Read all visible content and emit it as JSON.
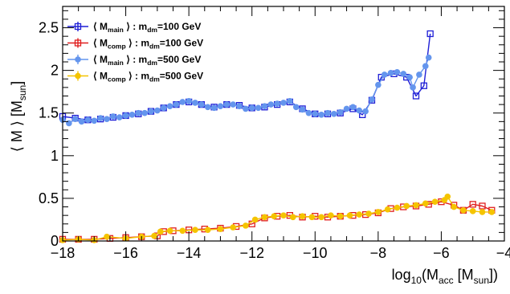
{
  "chart_data": {
    "type": "scatter",
    "title": "",
    "xlabel": {
      "base": "log",
      "sub1": "10",
      "open": "(M",
      "sub2": "acc",
      "mid": " [M",
      "sub3": "sun",
      "close": "])"
    },
    "ylabel": {
      "main": "⟨ M ⟩ [M",
      "sub": "sun",
      "close": "]"
    },
    "xlim": [
      -18,
      -4
    ],
    "ylim": [
      0,
      2.75
    ],
    "x_ticks": [
      -18,
      -16,
      -14,
      -12,
      -10,
      -8,
      -6,
      -4
    ],
    "x_tick_labels": [
      "−18",
      "−16",
      "−14",
      "−12",
      "−10",
      "−8",
      "−6",
      "−4"
    ],
    "y_ticks": [
      0,
      0.5,
      1,
      1.5,
      2,
      2.5
    ],
    "y_tick_labels": [
      "0",
      "0.5",
      "1",
      "1.5",
      "2",
      "2.5"
    ],
    "legend_position": "top-left",
    "series": [
      {
        "legend": {
          "pre": "⟨ M",
          "sub1": "main",
          "mid": " ⟩ : m",
          "sub2": "dm",
          "post": "=100 GeV"
        },
        "color": "#1f1fd6",
        "marker": "open-square",
        "points": [
          [
            -18,
            1.46
          ],
          [
            -17.6,
            1.44
          ],
          [
            -17.2,
            1.42
          ],
          [
            -16.8,
            1.43
          ],
          [
            -16.4,
            1.45
          ],
          [
            -16,
            1.47
          ],
          [
            -15.6,
            1.49
          ],
          [
            -15.2,
            1.52
          ],
          [
            -14.8,
            1.56
          ],
          [
            -14.4,
            1.6
          ],
          [
            -14,
            1.63
          ],
          [
            -13.6,
            1.6
          ],
          [
            -13.2,
            1.57
          ],
          [
            -12.8,
            1.6
          ],
          [
            -12.4,
            1.59
          ],
          [
            -12,
            1.56
          ],
          [
            -11.6,
            1.57
          ],
          [
            -11.2,
            1.6
          ],
          [
            -10.8,
            1.63
          ],
          [
            -10.4,
            1.55
          ],
          [
            -10,
            1.49
          ],
          [
            -9.6,
            1.49
          ],
          [
            -9.2,
            1.5
          ],
          [
            -8.8,
            1.55
          ],
          [
            -8.5,
            1.48
          ],
          [
            -8.2,
            1.65
          ],
          [
            -7.9,
            1.92
          ],
          [
            -7.5,
            1.96
          ],
          [
            -7.1,
            1.92
          ],
          [
            -6.8,
            1.7
          ],
          [
            -6.55,
            1.82
          ],
          [
            -6.35,
            2.43
          ]
        ]
      },
      {
        "legend": {
          "pre": "⟨ M",
          "sub1": "comp",
          "mid": " ⟩ : m",
          "sub2": "dm",
          "post": "=100 GeV"
        },
        "color": "#e01f1f",
        "marker": "open-square",
        "points": [
          [
            -18,
            0.02
          ],
          [
            -17.5,
            0.02
          ],
          [
            -17,
            0.02
          ],
          [
            -16.5,
            0.03
          ],
          [
            -16,
            0.04
          ],
          [
            -15.5,
            0.05
          ],
          [
            -15,
            0.06
          ],
          [
            -14.8,
            0.11
          ],
          [
            -14.5,
            0.12
          ],
          [
            -14,
            0.13
          ],
          [
            -13.5,
            0.14
          ],
          [
            -13,
            0.15
          ],
          [
            -12.5,
            0.17
          ],
          [
            -12,
            0.2
          ],
          [
            -11.6,
            0.27
          ],
          [
            -11.2,
            0.29
          ],
          [
            -10.8,
            0.3
          ],
          [
            -10.4,
            0.28
          ],
          [
            -10,
            0.29
          ],
          [
            -9.6,
            0.28
          ],
          [
            -9.2,
            0.29
          ],
          [
            -8.8,
            0.3
          ],
          [
            -8.4,
            0.31
          ],
          [
            -8,
            0.33
          ],
          [
            -7.6,
            0.38
          ],
          [
            -7.2,
            0.4
          ],
          [
            -6.8,
            0.41
          ],
          [
            -6.4,
            0.43
          ],
          [
            -6,
            0.46
          ],
          [
            -5.6,
            0.42
          ],
          [
            -5.3,
            0.36
          ],
          [
            -5.0,
            0.43
          ],
          [
            -4.7,
            0.41
          ],
          [
            -4.4,
            0.36
          ]
        ]
      },
      {
        "legend": {
          "pre": "⟨ M",
          "sub1": "main",
          "mid": " ⟩ : m",
          "sub2": "dm",
          "post": "=500 GeV"
        },
        "color": "#6495ed",
        "marker": "filled-circle",
        "points": [
          [
            -18,
            1.42
          ],
          [
            -17.8,
            1.38
          ],
          [
            -17.6,
            1.43
          ],
          [
            -17.4,
            1.4
          ],
          [
            -17.2,
            1.42
          ],
          [
            -17,
            1.41
          ],
          [
            -16.8,
            1.44
          ],
          [
            -16.6,
            1.43
          ],
          [
            -16.4,
            1.46
          ],
          [
            -16.2,
            1.45
          ],
          [
            -16,
            1.47
          ],
          [
            -15.8,
            1.48
          ],
          [
            -15.6,
            1.5
          ],
          [
            -15.4,
            1.5
          ],
          [
            -15.2,
            1.52
          ],
          [
            -15,
            1.53
          ],
          [
            -14.8,
            1.56
          ],
          [
            -14.6,
            1.58
          ],
          [
            -14.4,
            1.6
          ],
          [
            -14.2,
            1.63
          ],
          [
            -14,
            1.64
          ],
          [
            -13.8,
            1.62
          ],
          [
            -13.6,
            1.6
          ],
          [
            -13.4,
            1.57
          ],
          [
            -13.2,
            1.56
          ],
          [
            -13,
            1.58
          ],
          [
            -12.8,
            1.6
          ],
          [
            -12.6,
            1.6
          ],
          [
            -12.4,
            1.58
          ],
          [
            -12.2,
            1.55
          ],
          [
            -12,
            1.56
          ],
          [
            -11.8,
            1.56
          ],
          [
            -11.6,
            1.58
          ],
          [
            -11.4,
            1.6
          ],
          [
            -11.2,
            1.61
          ],
          [
            -11,
            1.62
          ],
          [
            -10.8,
            1.64
          ],
          [
            -10.6,
            1.57
          ],
          [
            -10.4,
            1.54
          ],
          [
            -10.2,
            1.5
          ],
          [
            -10,
            1.49
          ],
          [
            -9.8,
            1.48
          ],
          [
            -9.6,
            1.5
          ],
          [
            -9.4,
            1.49
          ],
          [
            -9.2,
            1.51
          ],
          [
            -9,
            1.55
          ],
          [
            -8.8,
            1.57
          ],
          [
            -8.6,
            1.53
          ],
          [
            -8.4,
            1.52
          ],
          [
            -8.2,
            1.66
          ],
          [
            -8,
            1.83
          ],
          [
            -7.8,
            1.95
          ],
          [
            -7.6,
            1.97
          ],
          [
            -7.4,
            1.98
          ],
          [
            -7.2,
            1.96
          ],
          [
            -7,
            1.92
          ],
          [
            -6.9,
            1.8
          ],
          [
            -6.7,
            1.95
          ],
          [
            -6.5,
            2.05
          ],
          [
            -6.4,
            2.15
          ]
        ]
      },
      {
        "legend": {
          "pre": "⟨ M",
          "sub1": "comp",
          "mid": " ⟩ : m",
          "sub2": "dm",
          "post": "=500 GeV"
        },
        "color": "#f5c400",
        "marker": "filled-circle",
        "points": [
          [
            -18,
            0.01
          ],
          [
            -17.5,
            0.02
          ],
          [
            -17,
            0.01
          ],
          [
            -16.6,
            0.05
          ],
          [
            -16,
            0.03
          ],
          [
            -15.5,
            0.05
          ],
          [
            -15.1,
            0.06
          ],
          [
            -14.9,
            0.11
          ],
          [
            -14.6,
            0.12
          ],
          [
            -14.2,
            0.12
          ],
          [
            -13.8,
            0.13
          ],
          [
            -13.4,
            0.13
          ],
          [
            -13,
            0.14
          ],
          [
            -12.6,
            0.16
          ],
          [
            -12.2,
            0.18
          ],
          [
            -11.9,
            0.25
          ],
          [
            -11.6,
            0.28
          ],
          [
            -11.3,
            0.29
          ],
          [
            -11,
            0.3
          ],
          [
            -10.7,
            0.28
          ],
          [
            -10.4,
            0.29
          ],
          [
            -10.1,
            0.28
          ],
          [
            -9.8,
            0.28
          ],
          [
            -9.5,
            0.3
          ],
          [
            -9.2,
            0.29
          ],
          [
            -8.9,
            0.3
          ],
          [
            -8.6,
            0.31
          ],
          [
            -8.3,
            0.32
          ],
          [
            -8,
            0.34
          ],
          [
            -7.7,
            0.37
          ],
          [
            -7.4,
            0.39
          ],
          [
            -7.1,
            0.41
          ],
          [
            -6.8,
            0.42
          ],
          [
            -6.5,
            0.44
          ],
          [
            -6.2,
            0.46
          ],
          [
            -5.9,
            0.48
          ],
          [
            -5.8,
            0.52
          ],
          [
            -5.6,
            0.4
          ],
          [
            -5.3,
            0.36
          ],
          [
            -5,
            0.35
          ],
          [
            -4.7,
            0.34
          ],
          [
            -4.4,
            0.34
          ]
        ]
      }
    ]
  }
}
